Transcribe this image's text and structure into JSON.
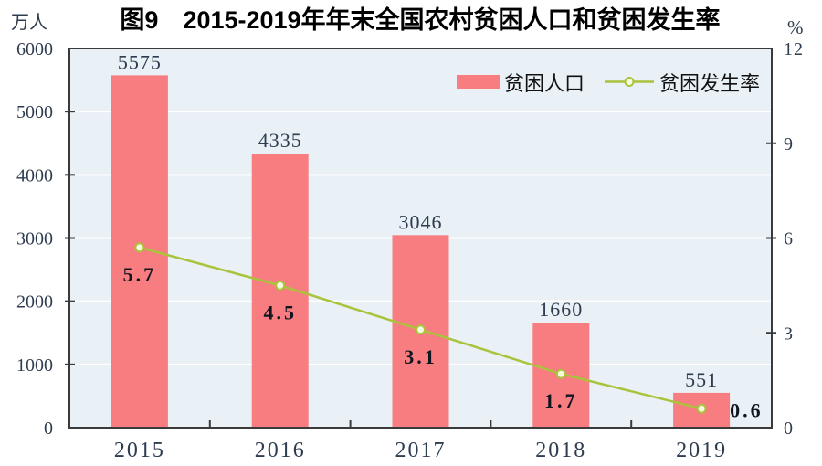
{
  "title": "图9　2015-2019年年末全国农村贫困人口和贫困发生率",
  "left_axis_unit": "万人",
  "right_axis_unit": "%",
  "legend": {
    "bar_label": "贫困人口",
    "line_label": "贫困发生率"
  },
  "colors": {
    "bar": "#f87d80",
    "line": "#a9c33c",
    "marker_fill": "#f7fbdf",
    "plot_bg": "#e9f1f6",
    "grid": "#ffffff",
    "border": "#3a3a3a",
    "tick_text": "#2e3c50",
    "rate_text": "#10161f"
  },
  "chart_data": {
    "type": "bar",
    "categories": [
      "2015",
      "2016",
      "2017",
      "2018",
      "2019"
    ],
    "series": [
      {
        "name": "贫困人口",
        "type": "bar",
        "axis": "left",
        "values": [
          5575,
          4335,
          3046,
          1660,
          551
        ]
      },
      {
        "name": "贫困发生率",
        "type": "line",
        "axis": "right",
        "values": [
          5.7,
          4.5,
          3.1,
          1.7,
          0.6
        ]
      }
    ],
    "left_axis": {
      "min": 0,
      "max": 6000,
      "step": 1000
    },
    "right_axis": {
      "min": 0,
      "max": 12,
      "step": 3
    },
    "grid": true,
    "legend_position": "top-right-inside"
  }
}
